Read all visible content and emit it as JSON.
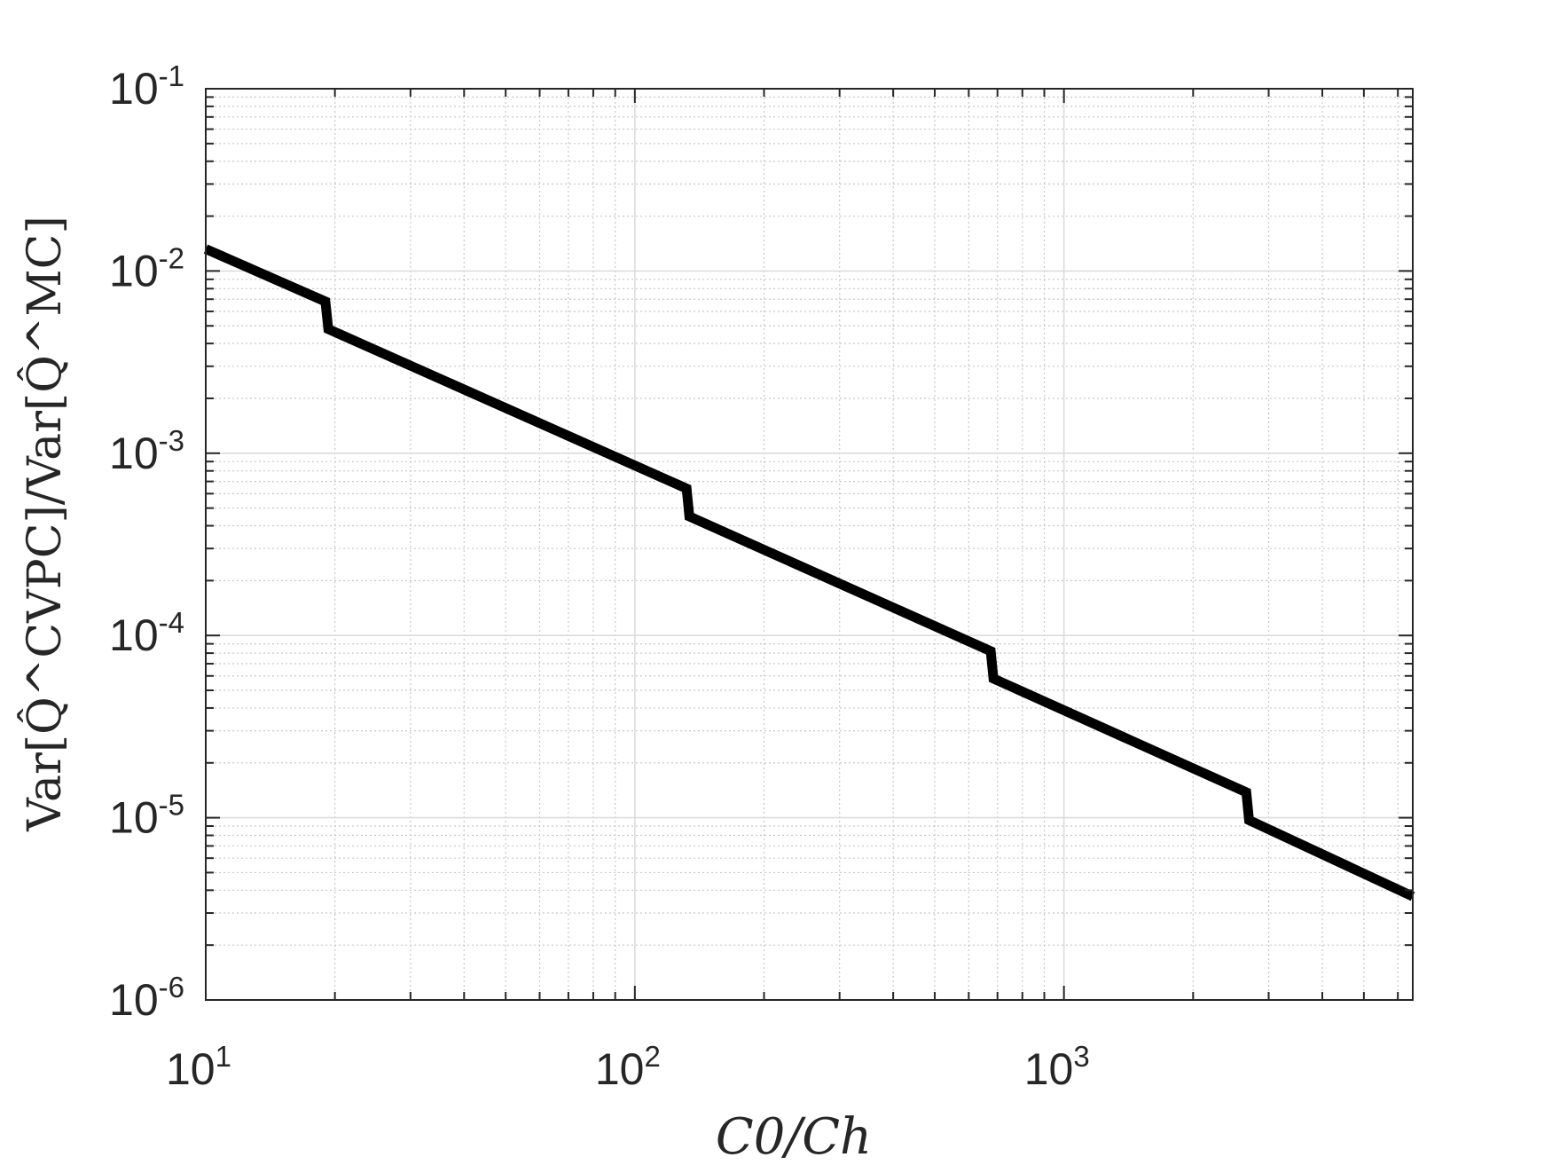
{
  "chart_data": {
    "type": "line",
    "x_scale": "log",
    "y_scale": "log",
    "xlim": [
      10,
      6500
    ],
    "ylim": [
      1e-06,
      0.1
    ],
    "grid": true,
    "minor_grid": true,
    "xlabel": "C0/Ch",
    "ylabel": "Var[Q̂^CVPC]/Var[Q̂^MC]",
    "x_ticks": [
      {
        "value": 10,
        "base": "10",
        "exp": "1"
      },
      {
        "value": 100,
        "base": "10",
        "exp": "2"
      },
      {
        "value": 1000,
        "base": "10",
        "exp": "3"
      }
    ],
    "y_ticks": [
      {
        "value": 1e-06,
        "base": "10",
        "exp": "-6"
      },
      {
        "value": 1e-05,
        "base": "10",
        "exp": "-5"
      },
      {
        "value": 0.0001,
        "base": "10",
        "exp": "-4"
      },
      {
        "value": 0.001,
        "base": "10",
        "exp": "-3"
      },
      {
        "value": 0.01,
        "base": "10",
        "exp": "-2"
      },
      {
        "value": 0.1,
        "base": "10",
        "exp": "-1"
      }
    ],
    "series": [
      {
        "color": "#000000",
        "x": [
          10,
          19,
          19.3,
          132,
          134,
          675,
          685,
          2660,
          2700,
          6500
        ],
        "y": [
          0.0132,
          0.0068,
          0.0048,
          0.00064,
          0.00045,
          8.2e-05,
          5.8e-05,
          1.38e-05,
          9.7e-06,
          3.7e-06
        ]
      }
    ]
  }
}
